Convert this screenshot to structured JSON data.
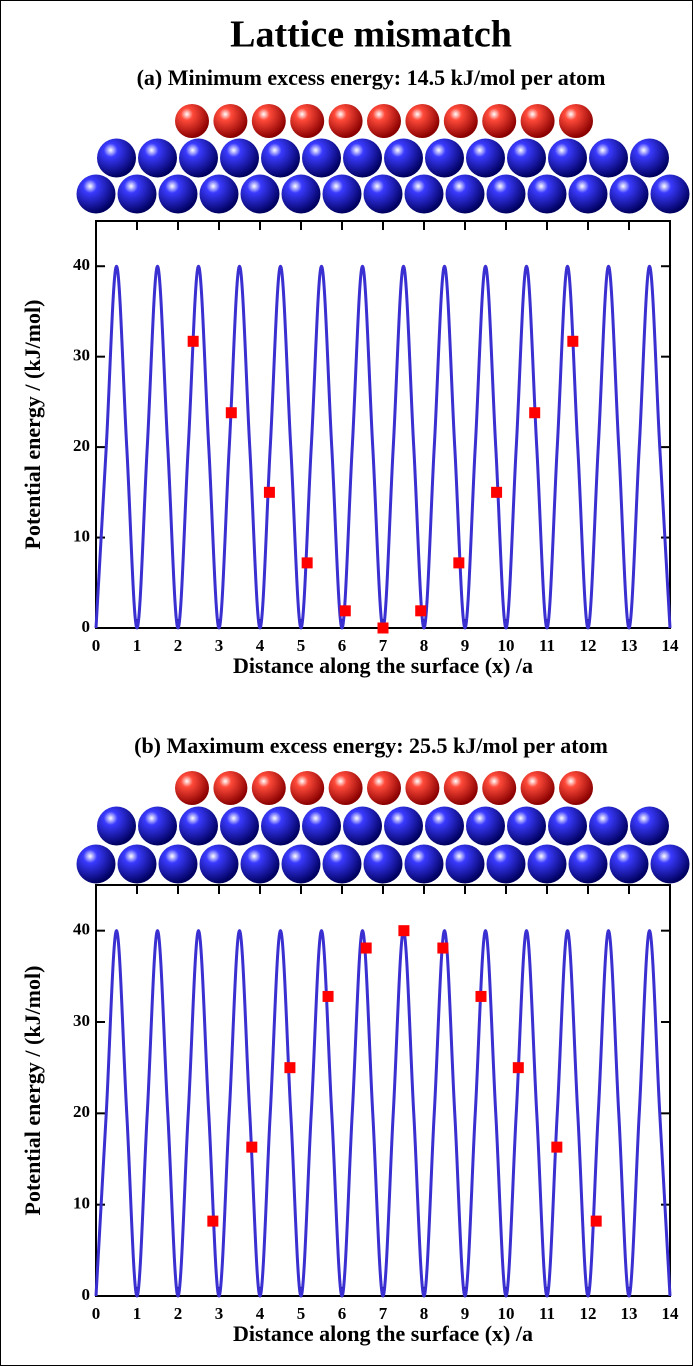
{
  "title": "Lattice mismatch",
  "chart_data": [
    {
      "type": "line",
      "subtitle": "(a) Minimum excess energy: 14.5 kJ/mol per atom",
      "xlabel": "Distance along the surface (x) /a",
      "ylabel": "Potential energy / (kJ/mol)",
      "xlim": [
        0,
        14
      ],
      "ylim": [
        0,
        45
      ],
      "xticks": [
        0,
        1,
        2,
        3,
        4,
        5,
        6,
        7,
        8,
        9,
        10,
        11,
        12,
        13,
        14
      ],
      "yticks": [
        0,
        10,
        20,
        30,
        40
      ],
      "curve": {
        "color": "#3a2fd0",
        "x": [
          0,
          0.25,
          0.5,
          0.75,
          1,
          1.25,
          1.5,
          1.75,
          2,
          2.25,
          2.5,
          2.75,
          3,
          3.25,
          3.5,
          3.75,
          4,
          4.25,
          4.5,
          4.75,
          5,
          5.25,
          5.5,
          5.75,
          6,
          6.25,
          6.5,
          6.75,
          7,
          7.25,
          7.5,
          7.75,
          8,
          8.25,
          8.5,
          8.75,
          9,
          9.25,
          9.5,
          9.75,
          10,
          10.25,
          10.5,
          10.75,
          11,
          11.25,
          11.5,
          11.75,
          12,
          12.25,
          12.5,
          12.75,
          13,
          13.25,
          13.5,
          13.75,
          14
        ],
        "values": [
          0,
          20,
          40,
          20,
          0,
          20,
          40,
          20,
          0,
          20,
          40,
          20,
          0,
          20,
          40,
          20,
          0,
          20,
          40,
          20,
          0,
          20,
          40,
          20,
          0,
          20,
          40,
          20,
          0,
          20,
          40,
          20,
          0,
          20,
          40,
          20,
          0,
          20,
          40,
          20,
          0,
          20,
          40,
          20,
          0,
          20,
          40,
          20,
          0,
          20,
          40,
          20,
          0,
          20,
          40,
          20,
          0
        ]
      },
      "points": {
        "color": "#ff0000",
        "x": [
          2.37,
          3.3,
          4.23,
          5.15,
          6.08,
          7.0,
          7.92,
          8.85,
          9.77,
          10.7,
          11.63
        ],
        "values": [
          31.7,
          23.8,
          15.0,
          7.2,
          1.9,
          0,
          1.9,
          7.2,
          15.0,
          23.8,
          31.7
        ]
      }
    },
    {
      "type": "line",
      "subtitle": "(b) Maximum excess energy: 25.5 kJ/mol per atom",
      "xlabel": "Distance along the surface (x) /a",
      "ylabel": "Potential energy / (kJ/mol)",
      "xlim": [
        0,
        14
      ],
      "ylim": [
        0,
        45
      ],
      "xticks": [
        0,
        1,
        2,
        3,
        4,
        5,
        6,
        7,
        8,
        9,
        10,
        11,
        12,
        13,
        14
      ],
      "yticks": [
        0,
        10,
        20,
        30,
        40
      ],
      "curve": {
        "color": "#3a2fd0",
        "x": [
          0,
          0.25,
          0.5,
          0.75,
          1,
          1.25,
          1.5,
          1.75,
          2,
          2.25,
          2.5,
          2.75,
          3,
          3.25,
          3.5,
          3.75,
          4,
          4.25,
          4.5,
          4.75,
          5,
          5.25,
          5.5,
          5.75,
          6,
          6.25,
          6.5,
          6.75,
          7,
          7.25,
          7.5,
          7.75,
          8,
          8.25,
          8.5,
          8.75,
          9,
          9.25,
          9.5,
          9.75,
          10,
          10.25,
          10.5,
          10.75,
          11,
          11.25,
          11.5,
          11.75,
          12,
          12.25,
          12.5,
          12.75,
          13,
          13.25,
          13.5,
          13.75,
          14
        ],
        "values": [
          0,
          20,
          40,
          20,
          0,
          20,
          40,
          20,
          0,
          20,
          40,
          20,
          0,
          20,
          40,
          20,
          0,
          20,
          40,
          20,
          0,
          20,
          40,
          20,
          0,
          20,
          40,
          20,
          0,
          20,
          40,
          20,
          0,
          20,
          40,
          20,
          0,
          20,
          40,
          20,
          0,
          20,
          40,
          20,
          0,
          20,
          40,
          20,
          0,
          20,
          40,
          20,
          0,
          20,
          40,
          20,
          0
        ]
      },
      "points": {
        "color": "#ff0000",
        "x": [
          2.85,
          3.8,
          4.73,
          5.66,
          6.59,
          7.51,
          8.46,
          9.39,
          10.3,
          11.24,
          12.2
        ],
        "values": [
          8.2,
          16.3,
          25,
          32.8,
          38.1,
          40,
          38.1,
          32.8,
          25,
          16.3,
          8.2
        ]
      }
    }
  ]
}
